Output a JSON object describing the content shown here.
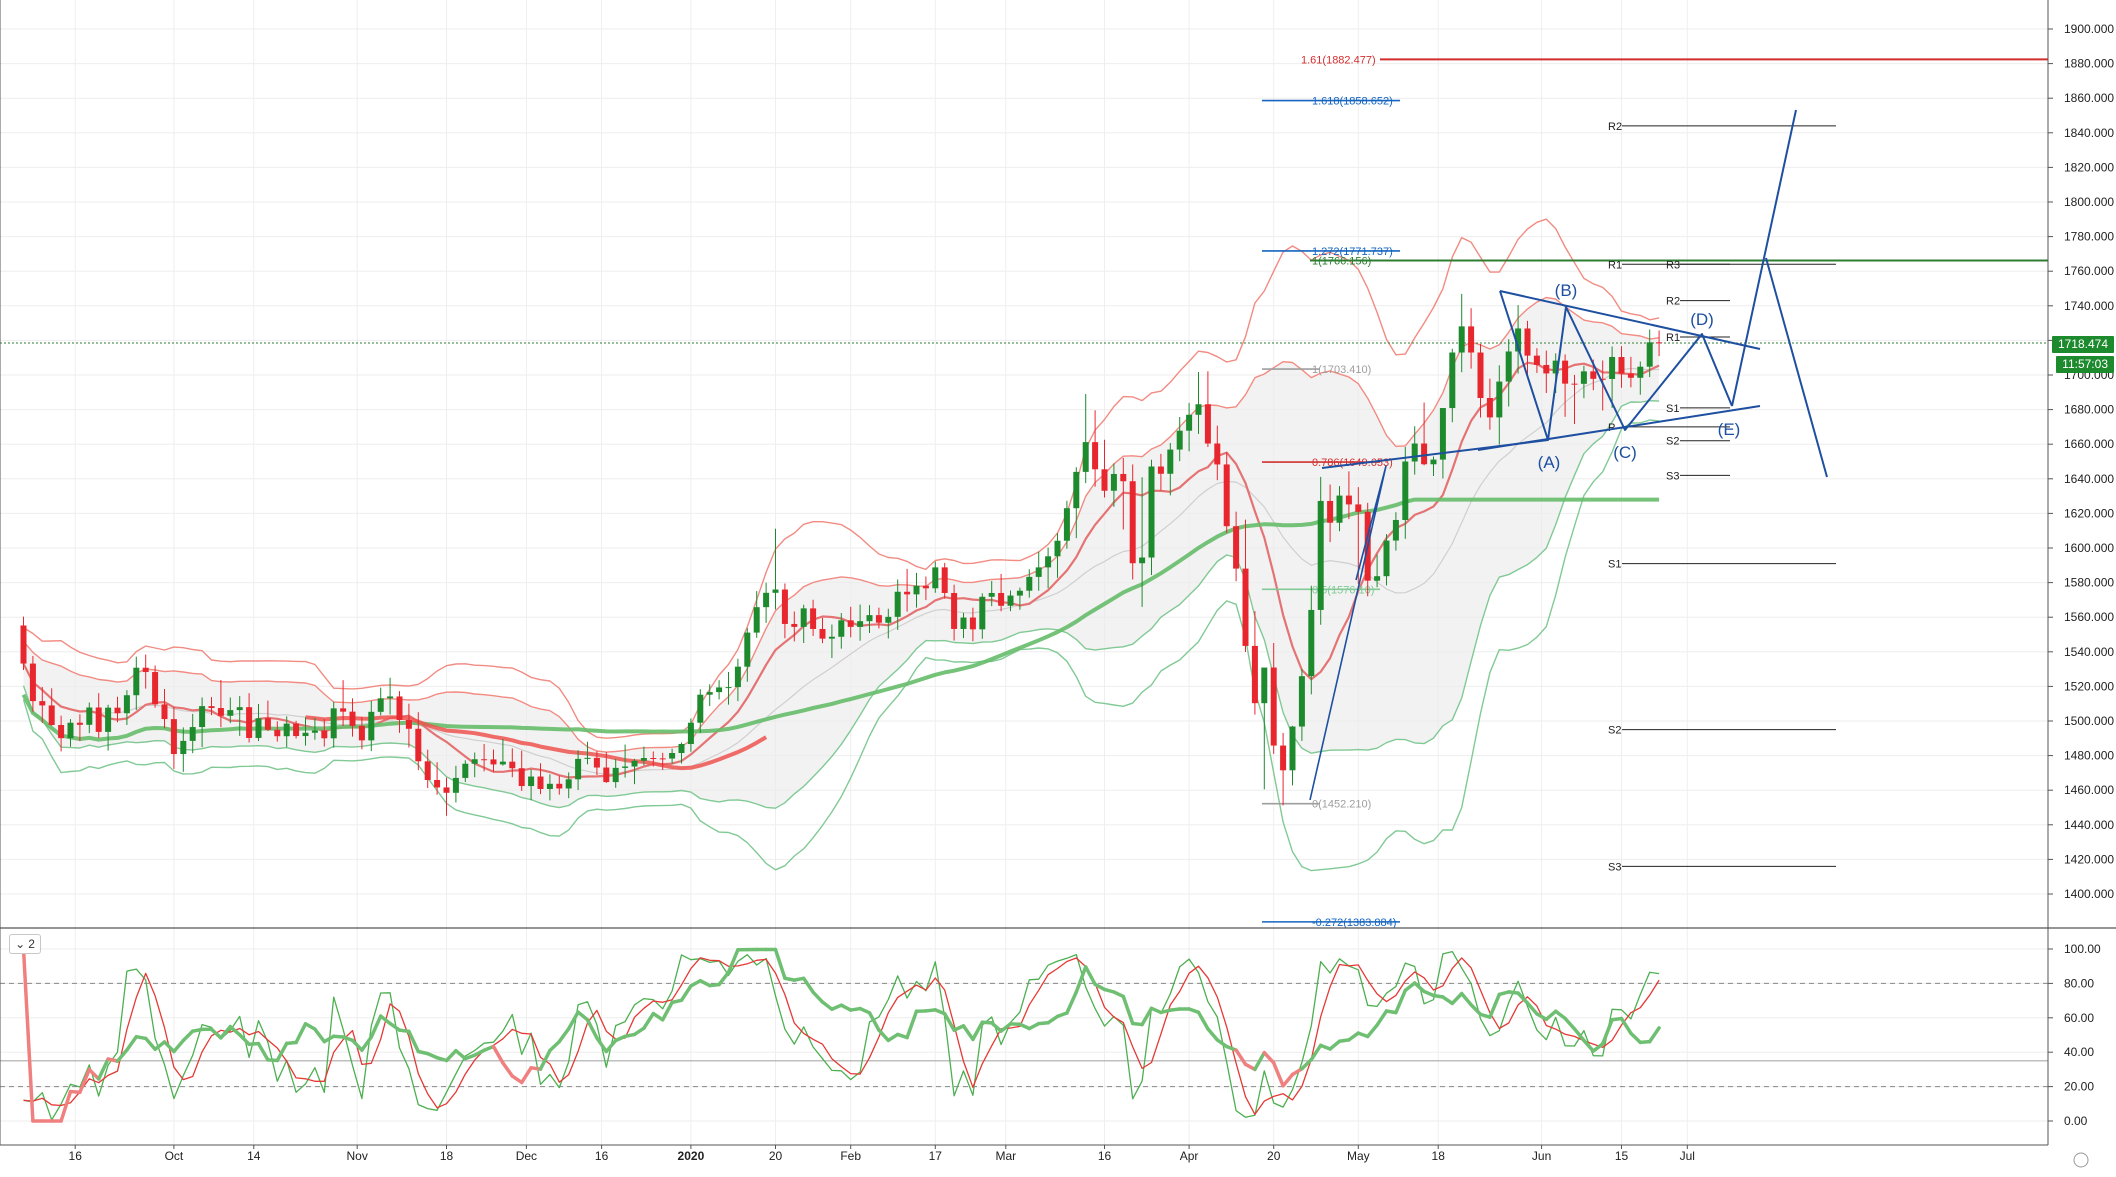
{
  "chart_data": {
    "type": "candlestick",
    "symbol_timeframe": "Daily",
    "price_axis": {
      "ticks": [
        "1900.000",
        "1880.000",
        "1860.000",
        "1840.000",
        "1820.000",
        "1800.000",
        "1780.000",
        "1760.000",
        "1740.000",
        "1720.000",
        "1700.000",
        "1680.000",
        "1660.000",
        "1640.000",
        "1620.000",
        "1600.000",
        "1580.000",
        "1560.000",
        "1540.000",
        "1520.000",
        "1500.000",
        "1480.000",
        "1460.000",
        "1440.000",
        "1420.000",
        "1400.000"
      ],
      "range": [
        1385,
        1915
      ]
    },
    "time_axis": {
      "labels": [
        "16",
        "Oct",
        "14",
        "Nov",
        "18",
        "Dec",
        "16",
        "2020",
        "20",
        "Feb",
        "17",
        "Mar",
        "16",
        "Apr",
        "20",
        "May",
        "18",
        "Jun",
        "15",
        "Jul"
      ],
      "bold": "2020",
      "bar_count": 175,
      "range": [
        -4,
        213
      ]
    },
    "current_price": "1718.474",
    "countdown": "11:57:03",
    "candles_ohlc": [
      [
        1555.2,
        1560.3,
        1529.5,
        1533.2
      ],
      [
        1533.2,
        1537.6,
        1505.4,
        1511.5
      ],
      [
        1511.5,
        1519.7,
        1498.9,
        1509.0
      ],
      [
        1509.0,
        1518.9,
        1497.3,
        1497.7
      ],
      [
        1497.7,
        1503.1,
        1482.4,
        1490.1
      ],
      [
        1490.1,
        1501.1,
        1485.1,
        1499.0
      ],
      [
        1499.0,
        1503.9,
        1488.4,
        1497.8
      ],
      [
        1497.8,
        1510.7,
        1493.0,
        1507.8
      ],
      [
        1507.8,
        1516.1,
        1490.2,
        1493.7
      ],
      [
        1493.7,
        1509.4,
        1482.9,
        1507.7
      ],
      [
        1507.7,
        1514.0,
        1499.3,
        1504.5
      ],
      [
        1504.5,
        1517.8,
        1497.7,
        1514.9
      ],
      [
        1514.9,
        1537.2,
        1506.3,
        1530.8
      ],
      [
        1530.8,
        1538.4,
        1518.7,
        1528.3
      ],
      [
        1528.3,
        1532.1,
        1507.7,
        1509.6
      ],
      [
        1509.6,
        1518.5,
        1495.8,
        1501.1
      ],
      [
        1501.1,
        1508.2,
        1472.3,
        1480.9
      ],
      [
        1480.9,
        1496.3,
        1470.6,
        1488.5
      ],
      [
        1488.5,
        1504.1,
        1481.4,
        1496.5
      ],
      [
        1496.5,
        1513.6,
        1484.9,
        1508.6
      ],
      [
        1508.6,
        1513.8,
        1503.4,
        1507.5
      ],
      [
        1507.5,
        1523.7,
        1496.4,
        1503.0
      ],
      [
        1503.0,
        1513.6,
        1498.8,
        1506.3
      ],
      [
        1506.3,
        1514.4,
        1491.4,
        1508.0
      ],
      [
        1508.0,
        1516.1,
        1487.6,
        1490.2
      ],
      [
        1490.2,
        1509.8,
        1488.4,
        1501.6
      ],
      [
        1501.6,
        1511.8,
        1494.2,
        1494.9
      ],
      [
        1494.9,
        1499.8,
        1488.1,
        1491.2
      ],
      [
        1491.2,
        1502.7,
        1484.8,
        1498.5
      ],
      [
        1498.5,
        1500.1,
        1489.9,
        1491.3
      ],
      [
        1491.3,
        1502.2,
        1485.8,
        1493.2
      ],
      [
        1493.2,
        1501.8,
        1489.2,
        1494.5
      ],
      [
        1494.5,
        1501.1,
        1485.2,
        1490.0
      ],
      [
        1490.0,
        1511.1,
        1484.6,
        1507.3
      ],
      [
        1507.3,
        1523.6,
        1497.1,
        1505.4
      ],
      [
        1505.4,
        1513.1,
        1491.0,
        1497.2
      ],
      [
        1497.2,
        1502.4,
        1483.6,
        1488.8
      ],
      [
        1488.8,
        1511.6,
        1482.6,
        1505.3
      ],
      [
        1505.3,
        1519.3,
        1503.3,
        1513.1
      ],
      [
        1513.1,
        1525.0,
        1503.8,
        1514.2
      ],
      [
        1514.2,
        1517.3,
        1493.1,
        1500.6
      ],
      [
        1500.6,
        1510.0,
        1484.7,
        1495.5
      ],
      [
        1495.5,
        1505.1,
        1471.6,
        1476.7
      ],
      [
        1476.7,
        1483.4,
        1461.3,
        1465.9
      ],
      [
        1465.9,
        1476.2,
        1457.4,
        1461.6
      ],
      [
        1461.6,
        1467.3,
        1445.2,
        1458.5
      ],
      [
        1458.5,
        1474.1,
        1452.9,
        1467.1
      ],
      [
        1467.1,
        1477.3,
        1464.7,
        1475.3
      ],
      [
        1475.3,
        1481.8,
        1467.5,
        1477.9
      ],
      [
        1477.9,
        1486.7,
        1470.9,
        1477.8
      ],
      [
        1477.8,
        1483.5,
        1470.7,
        1474.9
      ],
      [
        1474.9,
        1489.6,
        1474.2,
        1476.5
      ],
      [
        1476.5,
        1484.2,
        1467.5,
        1472.7
      ],
      [
        1472.7,
        1482.8,
        1459.6,
        1462.4
      ],
      [
        1462.4,
        1472.0,
        1454.2,
        1467.9
      ],
      [
        1467.9,
        1475.6,
        1457.7,
        1460.7
      ],
      [
        1460.7,
        1469.2,
        1454.1,
        1463.7
      ],
      [
        1463.7,
        1468.4,
        1457.4,
        1461.0
      ],
      [
        1461.0,
        1470.3,
        1455.4,
        1466.3
      ],
      [
        1466.3,
        1483.1,
        1460.1,
        1478.1
      ],
      [
        1478.1,
        1488.0,
        1475.0,
        1478.7
      ],
      [
        1478.7,
        1482.5,
        1468.8,
        1473.1
      ],
      [
        1473.1,
        1482.0,
        1464.2,
        1464.7
      ],
      [
        1464.7,
        1478.1,
        1461.4,
        1472.9
      ],
      [
        1472.9,
        1486.4,
        1467.3,
        1473.7
      ],
      [
        1473.7,
        1478.1,
        1463.5,
        1477.0
      ],
      [
        1477.0,
        1485.2,
        1474.4,
        1478.6
      ],
      [
        1478.6,
        1482.4,
        1473.7,
        1478.4
      ],
      [
        1478.4,
        1481.6,
        1471.7,
        1478.3
      ],
      [
        1478.3,
        1484.0,
        1475.3,
        1481.5
      ],
      [
        1481.5,
        1487.6,
        1475.4,
        1486.7
      ],
      [
        1486.7,
        1501.5,
        1482.2,
        1499.0
      ],
      [
        1499.0,
        1518.4,
        1493.1,
        1515.2
      ],
      [
        1515.2,
        1521.2,
        1508.6,
        1516.7
      ],
      [
        1516.7,
        1523.6,
        1512.5,
        1519.4
      ],
      [
        1519.4,
        1528.3,
        1509.5,
        1519.6
      ],
      [
        1519.6,
        1536.0,
        1511.5,
        1531.4
      ],
      [
        1531.4,
        1553.8,
        1522.7,
        1551.1
      ],
      [
        1551.1,
        1575.1,
        1548.1,
        1565.8
      ],
      [
        1565.8,
        1579.9,
        1556.7,
        1574.1
      ],
      [
        1574.1,
        1611.1,
        1564.5,
        1576.0
      ],
      [
        1576.0,
        1579.5,
        1547.8,
        1556.1
      ],
      [
        1556.1,
        1563.3,
        1546.0,
        1554.4
      ],
      [
        1554.4,
        1567.2,
        1545.1,
        1565.1
      ],
      [
        1565.1,
        1570.1,
        1549.2,
        1553.2
      ],
      [
        1553.2,
        1559.6,
        1545.0,
        1547.6
      ],
      [
        1547.6,
        1555.8,
        1536.4,
        1548.7
      ],
      [
        1548.7,
        1562.4,
        1541.8,
        1558.2
      ],
      [
        1558.2,
        1566.0,
        1548.4,
        1554.4
      ],
      [
        1554.4,
        1567.3,
        1546.4,
        1557.7
      ],
      [
        1557.7,
        1567.0,
        1550.9,
        1561.2
      ],
      [
        1561.2,
        1565.5,
        1553.5,
        1556.8
      ],
      [
        1556.8,
        1564.9,
        1547.7,
        1560.2
      ],
      [
        1560.2,
        1581.8,
        1552.6,
        1574.7
      ],
      [
        1574.7,
        1587.9,
        1563.2,
        1573.2
      ],
      [
        1573.2,
        1585.6,
        1565.5,
        1578.2
      ],
      [
        1578.2,
        1583.5,
        1569.9,
        1576.7
      ],
      [
        1576.7,
        1592.2,
        1574.1,
        1588.8
      ],
      [
        1588.8,
        1591.4,
        1570.7,
        1574.0
      ],
      [
        1574.0,
        1578.8,
        1546.5,
        1553.2
      ],
      [
        1553.2,
        1562.6,
        1547.9,
        1559.8
      ],
      [
        1559.8,
        1565.5,
        1546.1,
        1553.0
      ],
      [
        1553.0,
        1573.8,
        1547.5,
        1571.8
      ],
      [
        1571.8,
        1580.9,
        1566.4,
        1574.0
      ],
      [
        1574.0,
        1585.0,
        1563.4,
        1566.6
      ],
      [
        1566.6,
        1575.4,
        1563.5,
        1572.5
      ],
      [
        1572.5,
        1577.1,
        1564.3,
        1575.3
      ],
      [
        1575.3,
        1587.7,
        1571.3,
        1583.3
      ],
      [
        1583.3,
        1597.9,
        1575.3,
        1588.8
      ],
      [
        1588.8,
        1600.3,
        1576.7,
        1595.2
      ],
      [
        1595.2,
        1608.6,
        1582.8,
        1604.2
      ],
      [
        1604.2,
        1627.3,
        1599.6,
        1623.0
      ],
      [
        1623.0,
        1646.7,
        1605.7,
        1644.0
      ],
      [
        1644.0,
        1689.0,
        1637.5,
        1661.2
      ],
      [
        1661.2,
        1679.6,
        1635.4,
        1645.5
      ],
      [
        1645.5,
        1662.6,
        1629.2,
        1633.1
      ],
      [
        1633.1,
        1648.9,
        1623.8,
        1642.8
      ],
      [
        1642.8,
        1652.1,
        1610.7,
        1638.6
      ],
      [
        1638.6,
        1648.3,
        1581.8,
        1591.2
      ],
      [
        1591.2,
        1640.9,
        1566.0,
        1594.5
      ],
      [
        1594.5,
        1651.0,
        1584.4,
        1647.1
      ],
      [
        1647.1,
        1654.4,
        1633.3,
        1642.9
      ],
      [
        1642.9,
        1660.7,
        1630.4,
        1656.9
      ],
      [
        1656.9,
        1675.7,
        1650.2,
        1667.8
      ],
      [
        1667.8,
        1683.9,
        1655.9,
        1677.0
      ],
      [
        1677.0,
        1701.7,
        1666.0,
        1683.1
      ],
      [
        1683.1,
        1702.1,
        1658.4,
        1660.4
      ],
      [
        1660.4,
        1670.7,
        1639.2,
        1648.3
      ],
      [
        1648.3,
        1655.3,
        1608.7,
        1612.6
      ],
      [
        1612.6,
        1621.0,
        1580.8,
        1588.1
      ],
      [
        1588.1,
        1616.4,
        1539.9,
        1543.4
      ],
      [
        1543.4,
        1563.5,
        1503.7,
        1510.3
      ],
      [
        1510.3,
        1528.8,
        1460.5,
        1530.9
      ],
      [
        1530.9,
        1545.1,
        1481.0,
        1485.8
      ],
      [
        1485.8,
        1493.1,
        1451.2,
        1471.5
      ],
      [
        1471.5,
        1497.2,
        1462.8,
        1496.8
      ],
      [
        1496.8,
        1530.1,
        1488.5,
        1525.9
      ],
      [
        1525.9,
        1578.2,
        1515.4,
        1564.2
      ],
      [
        1564.2,
        1641.1,
        1555.6,
        1627.2
      ],
      [
        1627.2,
        1636.7,
        1603.4,
        1614.6
      ],
      [
        1614.6,
        1635.8,
        1609.7,
        1630.3
      ],
      [
        1630.3,
        1644.3,
        1616.7,
        1625.2
      ],
      [
        1625.2,
        1635.2,
        1579.3,
        1620.9
      ],
      [
        1620.9,
        1626.1,
        1572.1,
        1581.1
      ],
      [
        1581.1,
        1596.3,
        1577.3,
        1583.7
      ],
      [
        1583.7,
        1608.0,
        1578.4,
        1604.3
      ],
      [
        1604.3,
        1620.7,
        1598.5,
        1616.2
      ],
      [
        1616.2,
        1658.4,
        1605.3,
        1650.0
      ],
      [
        1650.0,
        1670.4,
        1642.4,
        1660.4
      ],
      [
        1660.4,
        1684.1,
        1647.8,
        1648.4
      ],
      [
        1648.4,
        1652.9,
        1641.6,
        1651.1
      ],
      [
        1651.1,
        1680.7,
        1640.2,
        1680.9
      ],
      [
        1680.9,
        1715.2,
        1672.7,
        1713.0
      ],
      [
        1713.0,
        1746.9,
        1701.6,
        1728.1
      ],
      [
        1728.1,
        1738.6,
        1703.7,
        1713.0
      ],
      [
        1713.0,
        1717.9,
        1675.4,
        1686.7
      ],
      [
        1686.7,
        1697.9,
        1668.4,
        1675.5
      ],
      [
        1675.5,
        1705.6,
        1659.7,
        1696.2
      ],
      [
        1696.2,
        1720.7,
        1681.8,
        1713.6
      ],
      [
        1713.6,
        1740.4,
        1700.8,
        1726.9
      ],
      [
        1726.9,
        1731.3,
        1698.4,
        1711.2
      ],
      [
        1711.2,
        1715.5,
        1701.2,
        1705.8
      ],
      [
        1705.8,
        1714.1,
        1689.6,
        1700.9
      ],
      [
        1700.9,
        1712.5,
        1689.6,
        1708.3
      ],
      [
        1708.3,
        1711.9,
        1675.8,
        1695.0
      ],
      [
        1695.0,
        1700.1,
        1671.7,
        1694.9
      ],
      [
        1694.9,
        1705.4,
        1686.6,
        1702.1
      ],
      [
        1702.1,
        1708.9,
        1691.2,
        1697.8
      ],
      [
        1697.8,
        1708.4,
        1679.5,
        1697.7
      ],
      [
        1697.7,
        1716.5,
        1681.0,
        1710.4
      ],
      [
        1710.4,
        1716.7,
        1692.6,
        1700.8
      ],
      [
        1700.8,
        1710.5,
        1692.9,
        1698.4
      ],
      [
        1698.4,
        1707.8,
        1688.6,
        1704.8
      ],
      [
        1704.8,
        1726.3,
        1698.8,
        1718.9
      ],
      [
        1718.9,
        1725.7,
        1710.9,
        1718.5
      ]
    ],
    "overlays": [
      {
        "name": "bollinger_outer",
        "color": "#f28b82"
      },
      {
        "name": "bollinger_inner",
        "color": "#81c995"
      },
      {
        "name": "ma_200",
        "color": "#66bb6a"
      },
      {
        "name": "ma_50",
        "color": "#ef5350"
      }
    ],
    "horizontal_lines": [
      {
        "price": 1882.477,
        "label": "1.61(1882.477)",
        "color": "#d32f2f"
      },
      {
        "price": 1858.652,
        "label": "1.618(1858.652)",
        "color": "#1565c0"
      },
      {
        "price": 1771.737,
        "label": "1.272(1771.737)",
        "color": "#1565c0"
      },
      {
        "price": 1766.156,
        "label": "1(1766.156)",
        "color": "#2e7d32"
      },
      {
        "price": 1703.41,
        "label": "1(1703.410)",
        "color": "#9e9e9e"
      },
      {
        "price": 1649.653,
        "label": "0.786(1649.653)",
        "color": "#d32f2f"
      },
      {
        "price": 1576.1,
        "label": "0.5(1576.10)",
        "color": "#81c995"
      },
      {
        "price": 1452.21,
        "label": "0(1452.210)",
        "color": "#9e9e9e"
      },
      {
        "price": 1383.884,
        "label": "-0.272(1383.884)",
        "color": "#1565c0"
      }
    ],
    "pivot_labels": [
      {
        "label": "R2",
        "price": 1844
      },
      {
        "label": "R1",
        "price": 1764
      },
      {
        "label": "S1",
        "price": 1591
      },
      {
        "label": "S2",
        "price": 1495
      },
      {
        "label": "S3",
        "price": 1416
      },
      {
        "label": "R3",
        "price": 1764
      },
      {
        "label": "R2",
        "price": 1743
      },
      {
        "label": "R1",
        "price": 1722
      },
      {
        "label": "P",
        "price": 1670
      },
      {
        "label": "S1",
        "price": 1681
      },
      {
        "label": "S2",
        "price": 1662
      },
      {
        "label": "S3",
        "price": 1642
      }
    ],
    "wave_labels": [
      "(A)",
      "(B)",
      "(C)",
      "(D)",
      "(E)"
    ],
    "oscillator": {
      "pane_label": "2",
      "ticks": [
        "100.00",
        "80.00",
        "60.00",
        "40.00",
        "20.00",
        "0.00"
      ],
      "range": [
        -5,
        105
      ],
      "levels": [
        80,
        20
      ],
      "midline": 35
    }
  }
}
